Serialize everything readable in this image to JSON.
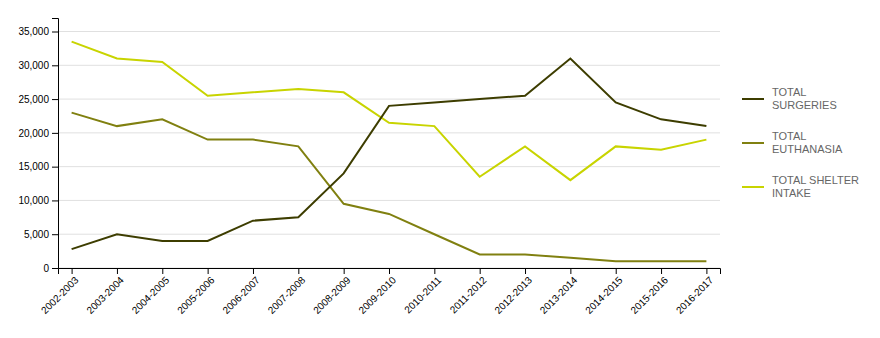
{
  "chart_data": {
    "type": "line",
    "categories": [
      "2002-2003",
      "2003-2004",
      "2004-2005",
      "2005-2006",
      "2006-2007",
      "2007-2008",
      "2008-2009",
      "2009-2010",
      "2010-2011",
      "2011-2012",
      "2012-2013",
      "2013-2014",
      "2014-2015",
      "2015-2016",
      "2016-2017"
    ],
    "series": [
      {
        "name": "TOTAL\nSURGERIES",
        "color": "#3d3d00",
        "values": [
          2800,
          5000,
          4000,
          4000,
          7000,
          7500,
          14000,
          24000,
          24500,
          25000,
          25500,
          31000,
          24500,
          22000,
          21000
        ]
      },
      {
        "name": "TOTAL\nEUTHANASIA",
        "color": "#808010",
        "values": [
          23000,
          21000,
          22000,
          19000,
          19000,
          18000,
          9500,
          8000,
          5000,
          2000,
          2000,
          1500,
          1000,
          1000,
          1000
        ]
      },
      {
        "name": "TOTAL SHELTER\nINTAKE",
        "color": "#c8d400",
        "values": [
          33500,
          31000,
          30500,
          25500,
          26000,
          26500,
          26000,
          21500,
          21000,
          13500,
          18000,
          13000,
          18000,
          17500,
          19000
        ]
      }
    ],
    "ylim": [
      0,
      37000
    ],
    "yticks": [
      0,
      {
        "value": 5000,
        "label": "5,000"
      },
      {
        "value": 10000,
        "label": "10,000"
      },
      {
        "value": 15000,
        "label": "15,000"
      },
      {
        "value": 20000,
        "label": "20,000"
      },
      {
        "value": 25000,
        "label": "25,000"
      },
      {
        "value": 30000,
        "label": "30,000"
      },
      {
        "value": 35000,
        "label": "35,000"
      }
    ],
    "grid": true,
    "legend": "right"
  }
}
